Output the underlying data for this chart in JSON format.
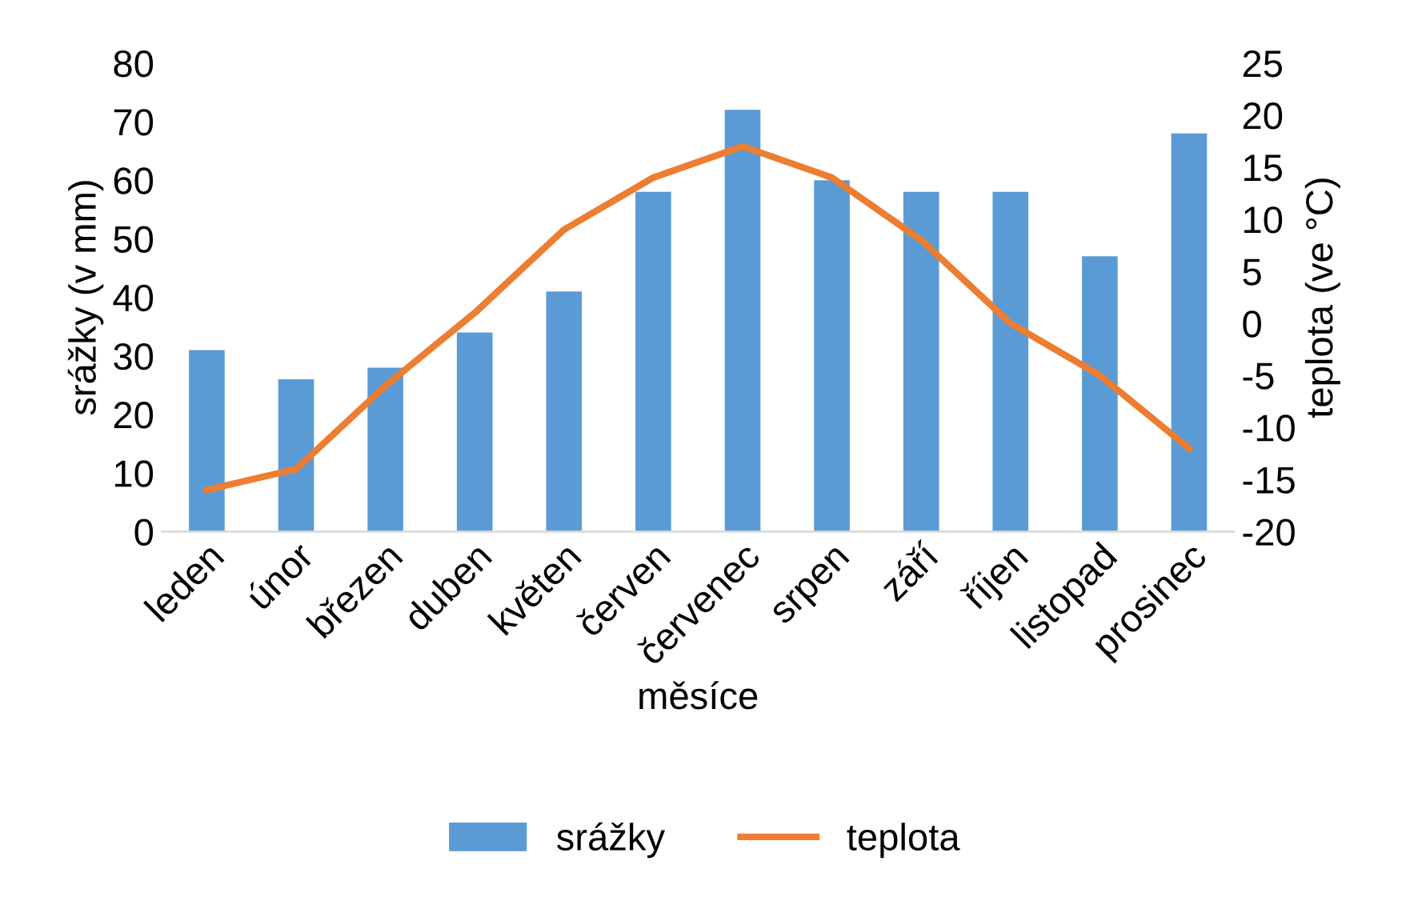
{
  "chart_data": {
    "type": "bar",
    "xlabel": "měsíce",
    "ylabel": "srážky (v mm)",
    "y2label": "teplota (ve °C)",
    "categories": [
      "leden",
      "únor",
      "březen",
      "duben",
      "květen",
      "červen",
      "červenec",
      "srpen",
      "září",
      "říjen",
      "listopad",
      "prosinec"
    ],
    "series": [
      {
        "name": "srážky",
        "color": "#5b9bd5",
        "values": [
          31,
          26,
          28,
          34,
          41,
          58,
          72,
          60,
          58,
          58,
          47,
          68
        ]
      },
      {
        "name": "teplota",
        "type": "line",
        "axis": "y2",
        "color": "#ed7d31",
        "values": [
          -16,
          -14,
          -6,
          1,
          9,
          14,
          17,
          14,
          8,
          0,
          -5,
          -12
        ]
      }
    ],
    "ylim": [
      0,
      80
    ],
    "yticks": [
      0,
      10,
      20,
      30,
      40,
      50,
      60,
      70,
      80
    ],
    "y2lim": [
      -20,
      25
    ],
    "y2ticks": [
      -20,
      -15,
      -10,
      -5,
      0,
      5,
      10,
      15,
      20,
      25
    ],
    "grid": false,
    "legend": "bottom",
    "marker": "none",
    "line_style": "solid"
  }
}
